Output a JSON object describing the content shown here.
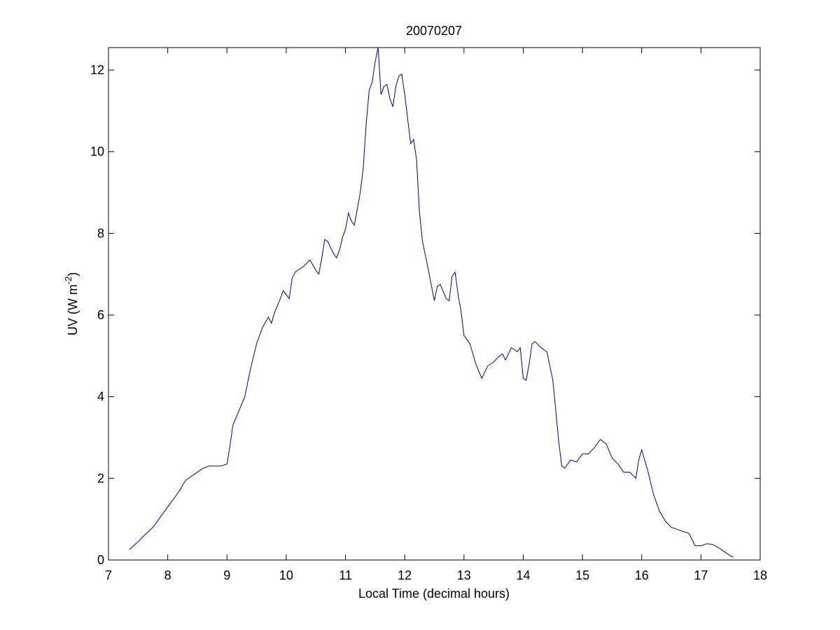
{
  "chart_data": {
    "type": "line",
    "title": "20070207",
    "xlabel": "Local Time (decimal hours)",
    "ylabel": "UV (W m",
    "ylabel_sup": "-2",
    "ylabel_suffix": ")",
    "xlim": [
      7,
      18
    ],
    "ylim": [
      0,
      12.55
    ],
    "xticks": [
      7,
      8,
      9,
      10,
      11,
      12,
      13,
      14,
      15,
      16,
      17,
      18
    ],
    "yticks": [
      0,
      2,
      4,
      6,
      8,
      10,
      12
    ],
    "grid": false,
    "legend": "none",
    "line_color": "#00008b",
    "series": [
      {
        "x": [
          7.35,
          7.5,
          7.6,
          7.75,
          7.9,
          8.0,
          8.1,
          8.2,
          8.3,
          8.4,
          8.5,
          8.6,
          8.7,
          8.8,
          8.9,
          9.0,
          9.05,
          9.1,
          9.2,
          9.3,
          9.4,
          9.5,
          9.6,
          9.7,
          9.75,
          9.8,
          9.9,
          9.95,
          10.0,
          10.05,
          10.1,
          10.15,
          10.2,
          10.3,
          10.4,
          10.5,
          10.55,
          10.6,
          10.65,
          10.7,
          10.8,
          10.85,
          10.9,
          10.95,
          11.0,
          11.05,
          11.1,
          11.15,
          11.2,
          11.25,
          11.3,
          11.35,
          11.4,
          11.45,
          11.5,
          11.55,
          11.6,
          11.65,
          11.7,
          11.75,
          11.8,
          11.85,
          11.9,
          11.95,
          12.0,
          12.05,
          12.1,
          12.15,
          12.2,
          12.25,
          12.3,
          12.4,
          12.5,
          12.55,
          12.6,
          12.7,
          12.75,
          12.8,
          12.85,
          12.9,
          12.95,
          13.0,
          13.1,
          13.2,
          13.3,
          13.4,
          13.5,
          13.6,
          13.65,
          13.7,
          13.8,
          13.9,
          13.95,
          14.0,
          14.05,
          14.1,
          14.15,
          14.2,
          14.3,
          14.4,
          14.5,
          14.6,
          14.65,
          14.7,
          14.8,
          14.9,
          15.0,
          15.1,
          15.2,
          15.3,
          15.4,
          15.5,
          15.6,
          15.7,
          15.8,
          15.9,
          15.95,
          16.0,
          16.1,
          16.2,
          16.3,
          16.4,
          16.5,
          16.6,
          16.7,
          16.8,
          16.9,
          17.0,
          17.1,
          17.2,
          17.3,
          17.4,
          17.5,
          17.55
        ],
        "y": [
          0.25,
          0.45,
          0.6,
          0.8,
          1.1,
          1.3,
          1.5,
          1.7,
          1.95,
          2.05,
          2.15,
          2.25,
          2.3,
          2.3,
          2.3,
          2.35,
          2.8,
          3.3,
          3.65,
          4.0,
          4.7,
          5.3,
          5.7,
          5.95,
          5.8,
          6.05,
          6.4,
          6.6,
          6.5,
          6.4,
          6.9,
          7.05,
          7.1,
          7.2,
          7.35,
          7.1,
          7.0,
          7.4,
          7.85,
          7.8,
          7.5,
          7.4,
          7.6,
          7.9,
          8.1,
          8.5,
          8.3,
          8.2,
          8.6,
          9.0,
          9.6,
          10.7,
          11.5,
          11.7,
          12.2,
          12.55,
          11.4,
          11.6,
          11.65,
          11.3,
          11.1,
          11.6,
          11.85,
          11.9,
          11.4,
          10.8,
          10.2,
          10.3,
          9.8,
          8.5,
          7.8,
          7.1,
          6.35,
          6.7,
          6.75,
          6.4,
          6.35,
          6.95,
          7.05,
          6.5,
          6.1,
          5.5,
          5.3,
          4.8,
          4.45,
          4.75,
          4.85,
          5.0,
          5.05,
          4.9,
          5.2,
          5.1,
          5.2,
          4.45,
          4.4,
          4.8,
          5.3,
          5.35,
          5.2,
          5.1,
          4.4,
          2.9,
          2.3,
          2.25,
          2.45,
          2.4,
          2.6,
          2.6,
          2.75,
          2.95,
          2.85,
          2.5,
          2.35,
          2.15,
          2.15,
          2.0,
          2.45,
          2.7,
          2.2,
          1.6,
          1.2,
          0.95,
          0.8,
          0.75,
          0.7,
          0.65,
          0.35,
          0.35,
          0.4,
          0.38,
          0.3,
          0.2,
          0.1,
          0.07
        ]
      }
    ]
  }
}
